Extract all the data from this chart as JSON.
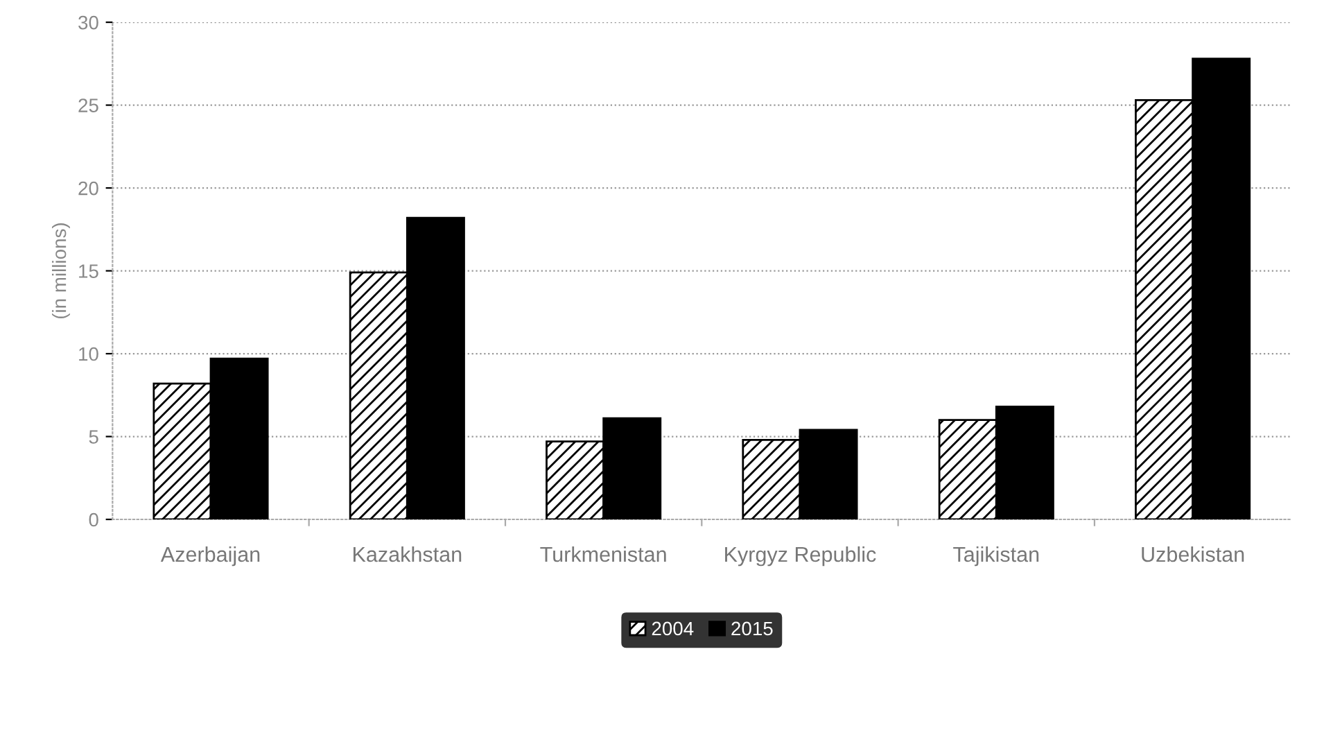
{
  "chart_data": {
    "type": "bar",
    "ylabel": "(in millions)",
    "categories": [
      "Azerbaijan",
      "Kazakhstan",
      "Turkmenistan",
      "Kyrgyz Republic",
      "Tajikistan",
      "Uzbekistan"
    ],
    "series": [
      {
        "name": "2004",
        "color": "#000000",
        "values": [
          8.2,
          14.9,
          4.7,
          4.8,
          6.0,
          25.3
        ]
      },
      {
        "name": "2015",
        "color": "#000000",
        "values": [
          9.7,
          18.2,
          6.1,
          5.4,
          6.8,
          27.8
        ]
      }
    ],
    "ylim": [
      0,
      30
    ],
    "yticks": [
      0,
      5,
      10,
      15,
      20,
      25,
      30
    ],
    "grid": "y",
    "legend": "bottom"
  }
}
